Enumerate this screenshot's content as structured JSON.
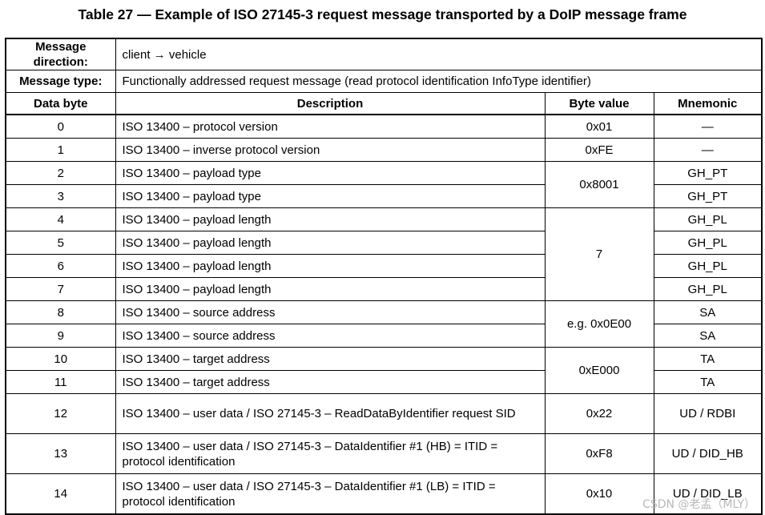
{
  "title": "Table 27 — Example of ISO 27145-3 request message transported by a DoIP message frame",
  "meta": {
    "direction_label": "Message direction:",
    "direction_value": "client → vehicle",
    "type_label": "Message type:",
    "type_value": "Functionally addressed request message (read protocol identification InfoType identifier)"
  },
  "columns": [
    "Data byte",
    "Description",
    "Byte value",
    "Mnemonic"
  ],
  "rows": [
    {
      "byte": "0",
      "desc": "ISO 13400 – protocol version",
      "value": "0x01",
      "mnemonic": "—"
    },
    {
      "byte": "1",
      "desc": "ISO 13400 – inverse protocol version",
      "value": "0xFE",
      "mnemonic": "—"
    },
    {
      "byte": "2",
      "desc": "ISO 13400 – payload type",
      "value": "0x8001",
      "mnemonic": "GH_PT"
    },
    {
      "byte": "3",
      "desc": "ISO 13400 – payload type",
      "value": "",
      "mnemonic": "GH_PT"
    },
    {
      "byte": "4",
      "desc": "ISO 13400 – payload length",
      "value": "7",
      "mnemonic": "GH_PL"
    },
    {
      "byte": "5",
      "desc": "ISO 13400 – payload length",
      "value": "",
      "mnemonic": "GH_PL"
    },
    {
      "byte": "6",
      "desc": "ISO 13400 – payload length",
      "value": "",
      "mnemonic": "GH_PL"
    },
    {
      "byte": "7",
      "desc": "ISO 13400 – payload length",
      "value": "",
      "mnemonic": "GH_PL"
    },
    {
      "byte": "8",
      "desc": "ISO 13400 – source address",
      "value": "e.g. 0x0E00",
      "mnemonic": "SA"
    },
    {
      "byte": "9",
      "desc": "ISO 13400 – source address",
      "value": "",
      "mnemonic": "SA"
    },
    {
      "byte": "10",
      "desc": "ISO 13400 – target address",
      "value": "0xE000",
      "mnemonic": "TA"
    },
    {
      "byte": "11",
      "desc": "ISO 13400 – target address",
      "value": "",
      "mnemonic": "TA"
    },
    {
      "byte": "12",
      "desc": "ISO 13400 – user data / ISO 27145-3 – ReadDataByIdentifier request SID",
      "value": "0x22",
      "mnemonic": "UD / RDBI"
    },
    {
      "byte": "13",
      "desc": "ISO 13400 – user data / ISO 27145-3 – DataIdentifier #1 (HB) = ITID = protocol identification",
      "value": "0xF8",
      "mnemonic": "UD / DID_HB"
    },
    {
      "byte": "14",
      "desc": "ISO 13400 – user data / ISO 27145-3 – DataIdentifier #1 (LB) = ITID = protocol identification",
      "value": "0x10",
      "mnemonic": "UD / DID_LB"
    }
  ],
  "watermark": "CSDN @老孟（MLY）"
}
